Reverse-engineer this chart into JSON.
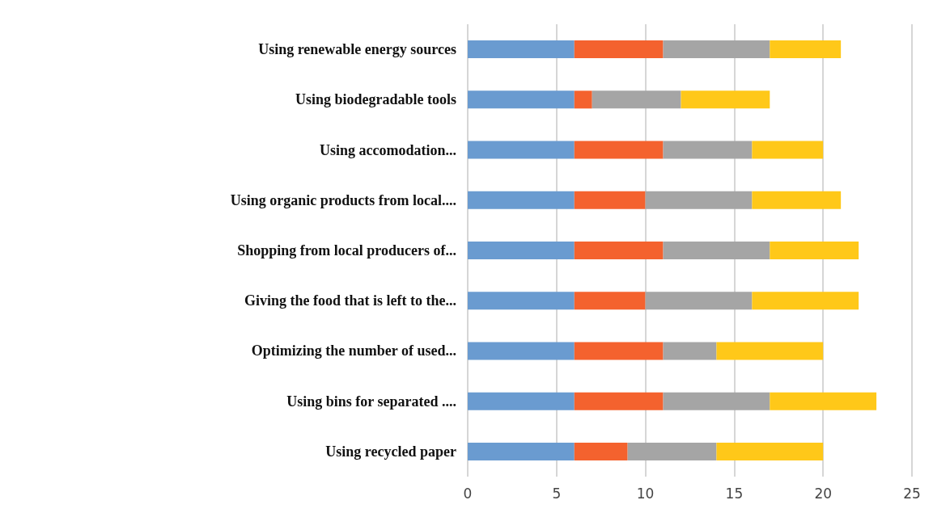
{
  "chart_data": {
    "type": "bar",
    "orientation": "horizontal",
    "stacked": true,
    "categories": [
      "Using renewable energy sources",
      "Using biodegradable tools",
      "Using accomodation...",
      "Using organic products from local....",
      "Shopping from local producers of...",
      "Giving the food that is left to the...",
      "Optimizing the number of used...",
      "Using bins for separated ....",
      "Using recycled paper"
    ],
    "series": [
      {
        "color": "#6a9bd0",
        "values": [
          6,
          6,
          6,
          6,
          6,
          6,
          6,
          6,
          6
        ]
      },
      {
        "color": "#f4622e",
        "values": [
          5,
          1,
          5,
          4,
          5,
          4,
          5,
          5,
          3
        ]
      },
      {
        "color": "#a5a5a5",
        "values": [
          6,
          5,
          5,
          6,
          6,
          6,
          3,
          6,
          5
        ]
      },
      {
        "color": "#ffc819",
        "values": [
          4,
          5,
          4,
          5,
          5,
          6,
          6,
          6,
          6
        ]
      }
    ],
    "xlim": [
      0,
      25
    ],
    "xticks": [
      0,
      5,
      10,
      15,
      20,
      25
    ],
    "grid": "x"
  }
}
